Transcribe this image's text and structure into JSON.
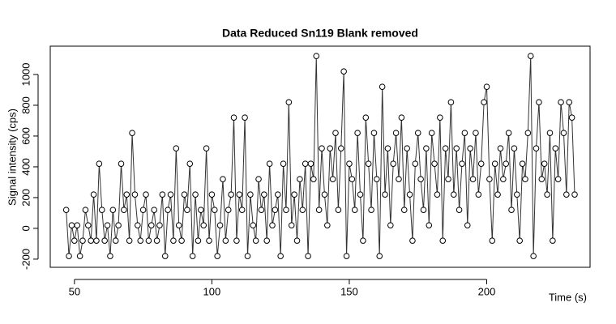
{
  "chart_data": {
    "type": "line",
    "title": "Data Reduced Sn119 Blank removed",
    "xlabel": "Time (s)",
    "ylabel": "Signal intensity (cps)",
    "x": [
      47,
      48,
      49,
      50,
      51,
      52,
      53,
      54,
      55,
      56,
      57,
      58,
      59,
      60,
      61,
      62,
      63,
      64,
      65,
      66,
      67,
      68,
      69,
      70,
      71,
      72,
      73,
      74,
      75,
      76,
      77,
      78,
      79,
      80,
      81,
      82,
      83,
      84,
      85,
      86,
      87,
      88,
      89,
      90,
      91,
      92,
      93,
      94,
      95,
      96,
      97,
      98,
      99,
      100,
      101,
      102,
      103,
      104,
      105,
      106,
      107,
      108,
      109,
      110,
      111,
      112,
      113,
      114,
      115,
      116,
      117,
      118,
      119,
      120,
      121,
      122,
      123,
      124,
      125,
      126,
      127,
      128,
      129,
      130,
      131,
      132,
      133,
      134,
      135,
      136,
      137,
      138,
      139,
      140,
      141,
      142,
      143,
      144,
      145,
      146,
      147,
      148,
      149,
      150,
      151,
      152,
      153,
      154,
      155,
      156,
      157,
      158,
      159,
      160,
      161,
      162,
      163,
      164,
      165,
      166,
      167,
      168,
      169,
      170,
      171,
      172,
      173,
      174,
      175,
      176,
      177,
      178,
      179,
      180,
      181,
      182,
      183,
      184,
      185,
      186,
      187,
      188,
      189,
      190,
      191,
      192,
      193,
      194,
      195,
      196,
      197,
      198,
      199,
      200,
      201,
      202,
      203,
      204,
      205,
      206,
      207,
      208,
      209,
      210,
      211,
      212,
      213,
      214,
      215,
      216,
      217,
      218,
      219,
      220,
      221,
      222,
      223,
      224,
      225,
      226,
      227,
      228,
      229,
      230,
      231,
      232
    ],
    "values": [
      120,
      -180,
      20,
      -80,
      20,
      -180,
      -80,
      120,
      20,
      -80,
      220,
      -80,
      420,
      120,
      -80,
      20,
      -180,
      120,
      -80,
      20,
      420,
      120,
      220,
      -80,
      620,
      220,
      20,
      -80,
      120,
      220,
      -80,
      20,
      120,
      -80,
      20,
      220,
      -180,
      120,
      220,
      -80,
      520,
      20,
      -80,
      220,
      120,
      420,
      -180,
      220,
      -80,
      120,
      20,
      520,
      -80,
      220,
      120,
      -180,
      20,
      320,
      -80,
      120,
      220,
      720,
      -80,
      220,
      120,
      720,
      -180,
      220,
      20,
      -80,
      320,
      120,
      220,
      -80,
      420,
      20,
      120,
      220,
      -180,
      420,
      120,
      820,
      20,
      220,
      -80,
      320,
      120,
      420,
      -180,
      420,
      320,
      1120,
      120,
      520,
      220,
      20,
      520,
      320,
      620,
      120,
      520,
      1020,
      -180,
      420,
      320,
      120,
      620,
      220,
      -80,
      720,
      420,
      120,
      620,
      320,
      -180,
      920,
      220,
      520,
      20,
      420,
      620,
      320,
      720,
      120,
      520,
      220,
      -80,
      420,
      620,
      320,
      120,
      520,
      20,
      620,
      420,
      220,
      720,
      -80,
      520,
      320,
      820,
      220,
      520,
      120,
      420,
      620,
      20,
      520,
      320,
      620,
      220,
      420,
      820,
      920,
      320,
      -80,
      420,
      220,
      520,
      320,
      420,
      620,
      120,
      520,
      220,
      -80,
      420,
      320,
      620,
      1120,
      -180,
      520,
      820,
      320,
      420,
      220,
      620,
      -80,
      520,
      320,
      820,
      620,
      220,
      820,
      720,
      220
    ],
    "color": "#000000",
    "xlim": [
      41.2,
      237.6
    ],
    "ylim": [
      -253,
      1184
    ],
    "xticks": [
      50,
      100,
      150,
      200
    ],
    "yticks": [
      -200,
      0,
      200,
      400,
      600,
      800,
      1000
    ]
  }
}
